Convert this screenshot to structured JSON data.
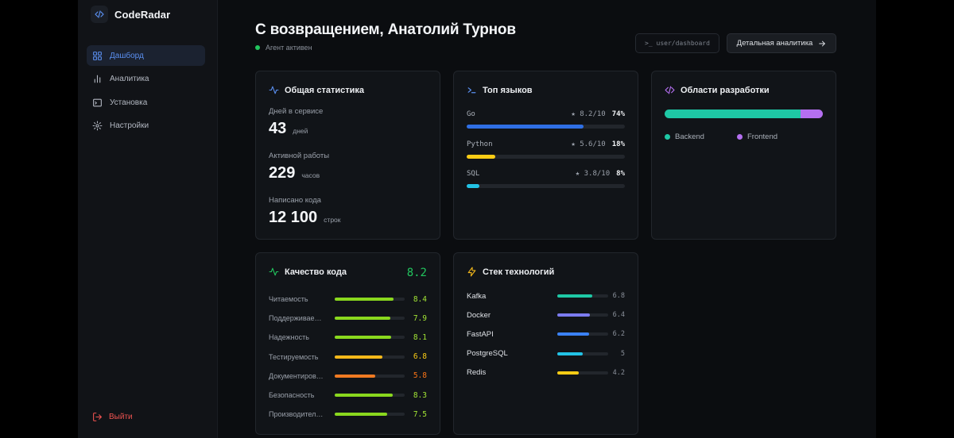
{
  "app": {
    "name": "CodeRadar"
  },
  "sidebar": {
    "items": [
      {
        "label": "Дашборд",
        "icon": "grid-icon",
        "active": true
      },
      {
        "label": "Аналитика",
        "icon": "bar-chart-icon",
        "active": false
      },
      {
        "label": "Установка",
        "icon": "terminal-icon",
        "active": false
      },
      {
        "label": "Настройки",
        "icon": "gear-icon",
        "active": false
      }
    ],
    "logout_label": "Выйти"
  },
  "header": {
    "title": "С возвращением, Анатолий Турнов",
    "status": "Агент активен",
    "path": ">_ user/dashboard",
    "analytics_button": "Детальная аналитика"
  },
  "stats": {
    "title": "Общая статистика",
    "items": [
      {
        "label": "Дней в сервисе",
        "value": "43",
        "unit": "дней"
      },
      {
        "label": "Активной работы",
        "value": "229",
        "unit": "часов"
      },
      {
        "label": "Написано кода",
        "value": "12 100",
        "unit": "строк"
      }
    ]
  },
  "languages": {
    "title": "Топ языков",
    "items": [
      {
        "name": "Go",
        "rating": "★ 8.2/10",
        "percent": "74%",
        "share": 0.74,
        "color": "#2f6fe4"
      },
      {
        "name": "Python",
        "rating": "★ 5.6/10",
        "percent": "18%",
        "share": 0.18,
        "color": "#facc15"
      },
      {
        "name": "SQL",
        "rating": "★ 3.8/10",
        "percent": "8%",
        "share": 0.08,
        "color": "#22c3e6"
      }
    ]
  },
  "areas": {
    "title": "Области разработки",
    "items": [
      {
        "name": "Backend",
        "share": 0.86,
        "color": "#1ec8a5"
      },
      {
        "name": "Frontend",
        "share": 0.14,
        "color": "#b46ff0"
      }
    ]
  },
  "quality": {
    "title": "Качество кода",
    "score": "8.2",
    "items": [
      {
        "label": "Читаемость",
        "value": "8.4",
        "level": 0.84,
        "color": "#8ad81e",
        "value_color": "#a3e635"
      },
      {
        "label": "Поддерживаемость",
        "value": "7.9",
        "level": 0.79,
        "color": "#8ad81e",
        "value_color": "#a3e635"
      },
      {
        "label": "Надежность",
        "value": "8.1",
        "level": 0.81,
        "color": "#8ad81e",
        "value_color": "#a3e635"
      },
      {
        "label": "Тестируемость",
        "value": "6.8",
        "level": 0.68,
        "color": "#f5b91a",
        "value_color": "#facc15"
      },
      {
        "label": "Документированность",
        "value": "5.8",
        "level": 0.58,
        "color": "#f07a22",
        "value_color": "#f97316"
      },
      {
        "label": "Безопасность",
        "value": "8.3",
        "level": 0.83,
        "color": "#8ad81e",
        "value_color": "#a3e635"
      },
      {
        "label": "Производительность",
        "value": "7.5",
        "level": 0.75,
        "color": "#8ad81e",
        "value_color": "#a3e635"
      }
    ]
  },
  "stack": {
    "title": "Стек технологий",
    "items": [
      {
        "name": "Kafka",
        "value": "6.8",
        "level": 0.68,
        "color": "#1ec8a5"
      },
      {
        "name": "Docker",
        "value": "6.4",
        "level": 0.64,
        "color": "#7c7cf0"
      },
      {
        "name": "FastAPI",
        "value": "6.2",
        "level": 0.62,
        "color": "#3b82f6"
      },
      {
        "name": "PostgreSQL",
        "value": "5",
        "level": 0.5,
        "color": "#22c3e6"
      },
      {
        "name": "Redis",
        "value": "4.2",
        "level": 0.42,
        "color": "#facc15"
      }
    ]
  }
}
